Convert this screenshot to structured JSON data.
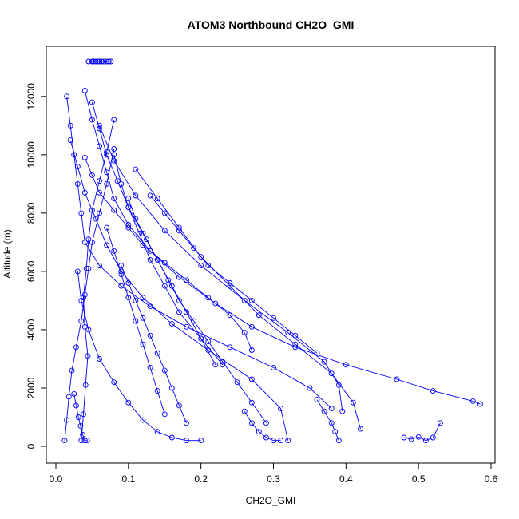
{
  "chart_data": {
    "type": "line",
    "title": "ATOM3 Northbound CH2O_GMI",
    "xlabel": "CH2O_GMI",
    "ylabel": "Altitude (m)",
    "xlim": [
      0,
      0.6
    ],
    "ylim": [
      0,
      13200
    ],
    "xticks": [
      "0.0",
      "0.1",
      "0.2",
      "0.3",
      "0.4",
      "0.5",
      "0.6"
    ],
    "yticks": [
      "0",
      "2000",
      "4000",
      "6000",
      "8000",
      "10000",
      "12000"
    ],
    "color": "#0000ff",
    "marker": "open-circle",
    "series": [
      {
        "x": [
          0.012,
          0.015,
          0.018,
          0.022,
          0.028,
          0.035,
          0.04,
          0.045,
          0.05,
          0.06,
          0.07,
          0.08
        ],
        "y": [
          200,
          900,
          1700,
          2600,
          3400,
          4300,
          5200,
          6100,
          7000,
          8000,
          9000,
          10200
        ]
      },
      {
        "x": [
          0.04,
          0.05,
          0.06,
          0.07,
          0.08,
          0.1,
          0.13,
          0.17,
          0.22,
          0.27,
          0.33,
          0.4,
          0.47,
          0.52,
          0.575,
          0.585
        ],
        "y": [
          12200,
          11200,
          10300,
          9400,
          8500,
          7600,
          6700,
          5800,
          4900,
          4100,
          3400,
          2800,
          2300,
          1900,
          1550,
          1450
        ]
      },
      {
        "x": [
          0.035,
          0.038,
          0.041,
          0.044,
          0.04,
          0.038,
          0.042,
          0.045,
          0.05,
          0.06,
          0.07,
          0.08
        ],
        "y": [
          200,
          1100,
          2100,
          3100,
          4100,
          5100,
          6100,
          7100,
          8100,
          9100,
          10100,
          11200
        ]
      },
      {
        "x": [
          0.06,
          0.08,
          0.11,
          0.15,
          0.2,
          0.26,
          0.32,
          0.37,
          0.39,
          0.395
        ],
        "y": [
          11000,
          9800,
          8600,
          7400,
          6200,
          5000,
          3900,
          2900,
          2100,
          1200
        ]
      },
      {
        "x": [
          0.02,
          0.03,
          0.04,
          0.055,
          0.07,
          0.09,
          0.12,
          0.16,
          0.21,
          0.27,
          0.31,
          0.32
        ],
        "y": [
          10500,
          9600,
          8700,
          7800,
          6900,
          6000,
          5100,
          4200,
          3300,
          2300,
          1300,
          200
        ]
      },
      {
        "x": [
          0.1,
          0.11,
          0.125,
          0.14,
          0.155,
          0.17,
          0.19,
          0.21,
          0.23,
          0.25,
          0.27,
          0.29
        ],
        "y": [
          8500,
          7800,
          7100,
          6400,
          5700,
          5000,
          4300,
          3600,
          2900,
          2200,
          1500,
          800
        ]
      },
      {
        "x": [
          0.015,
          0.02,
          0.025,
          0.03,
          0.035,
          0.04,
          0.06,
          0.09,
          0.13,
          0.18,
          0.24,
          0.3,
          0.35,
          0.38
        ],
        "y": [
          12000,
          11000,
          10000,
          9000,
          8000,
          7000,
          6200,
          5500,
          4800,
          4100,
          3400,
          2700,
          2000,
          1300
        ]
      },
      {
        "x": [
          0.045,
          0.05,
          0.052,
          0.055,
          0.058,
          0.06,
          0.063,
          0.066,
          0.07,
          0.073,
          0.076
        ],
        "y": [
          13200,
          13200,
          13200,
          13200,
          13200,
          13200,
          13200,
          13200,
          13200,
          13200,
          13200
        ]
      },
      {
        "x": [
          0.08,
          0.09,
          0.1,
          0.115,
          0.13,
          0.15,
          0.17,
          0.2,
          0.23
        ],
        "y": [
          10000,
          9000,
          8200,
          7300,
          6400,
          5500,
          4600,
          3700,
          2800
        ]
      },
      {
        "x": [
          0.03,
          0.035,
          0.045,
          0.06,
          0.08,
          0.1,
          0.12,
          0.14,
          0.16,
          0.18,
          0.2
        ],
        "y": [
          6000,
          5000,
          4000,
          3000,
          2200,
          1500,
          900,
          500,
          300,
          200,
          200
        ]
      },
      {
        "x": [
          0.11,
          0.14,
          0.17,
          0.2,
          0.24,
          0.28,
          0.33,
          0.38,
          0.41,
          0.42
        ],
        "y": [
          9500,
          8500,
          7500,
          6500,
          5500,
          4500,
          3500,
          2500,
          1500,
          600
        ]
      },
      {
        "x": [
          0.48,
          0.49,
          0.5,
          0.51,
          0.52,
          0.53
        ],
        "y": [
          300,
          250,
          320,
          200,
          300,
          800
        ]
      },
      {
        "x": [
          0.07,
          0.08,
          0.09,
          0.1,
          0.11,
          0.12,
          0.13,
          0.14,
          0.15
        ],
        "y": [
          7500,
          6700,
          5900,
          5100,
          4300,
          3500,
          2700,
          1900,
          1100
        ]
      },
      {
        "x": [
          0.05,
          0.06,
          0.07,
          0.085,
          0.1,
          0.12,
          0.14,
          0.16,
          0.18,
          0.2,
          0.22
        ],
        "y": [
          11800,
          10900,
          10000,
          9100,
          8200,
          7300,
          6400,
          5500,
          4600,
          3700,
          2800
        ]
      },
      {
        "x": [
          0.025,
          0.028,
          0.031,
          0.034,
          0.037,
          0.04,
          0.043
        ],
        "y": [
          1800,
          1400,
          1000,
          700,
          400,
          200,
          200
        ]
      },
      {
        "x": [
          0.13,
          0.15,
          0.17,
          0.19,
          0.21,
          0.24,
          0.27,
          0.3,
          0.33,
          0.36
        ],
        "y": [
          8600,
          8000,
          7400,
          6800,
          6200,
          5600,
          5000,
          4400,
          3800,
          3200
        ]
      },
      {
        "x": [
          0.26,
          0.27,
          0.28,
          0.29,
          0.3,
          0.31
        ],
        "y": [
          1200,
          800,
          500,
          300,
          200,
          200
        ]
      },
      {
        "x": [
          0.09,
          0.1,
          0.11,
          0.12,
          0.13,
          0.14,
          0.15,
          0.16,
          0.17,
          0.18
        ],
        "y": [
          6200,
          5600,
          5000,
          4400,
          3800,
          3200,
          2600,
          2000,
          1400,
          800
        ]
      },
      {
        "x": [
          0.04,
          0.05,
          0.06,
          0.08,
          0.1,
          0.12,
          0.15,
          0.18,
          0.21,
          0.24,
          0.26,
          0.27
        ],
        "y": [
          9900,
          9300,
          8700,
          8100,
          7500,
          6900,
          6300,
          5700,
          5100,
          4500,
          3900,
          3300
        ]
      },
      {
        "x": [
          0.36,
          0.37,
          0.38,
          0.385,
          0.39
        ],
        "y": [
          1600,
          1200,
          800,
          500,
          200
        ]
      }
    ]
  }
}
